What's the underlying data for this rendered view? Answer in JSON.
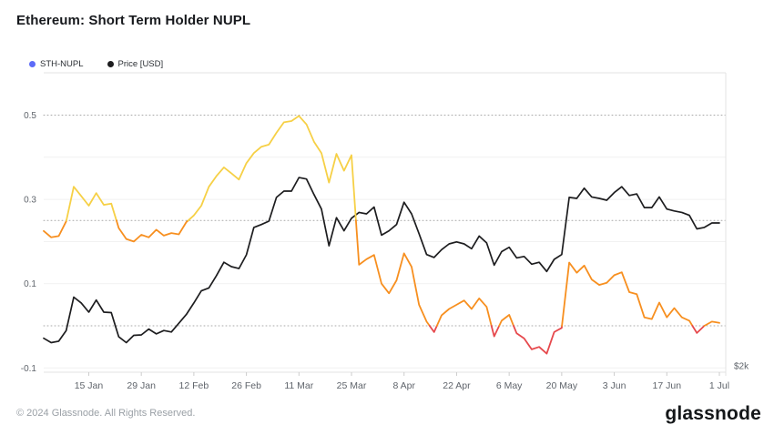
{
  "title": "Ethereum: Short Term Holder NUPL",
  "legend": [
    {
      "label": "STH-NUPL",
      "color": "#5d6bf8"
    },
    {
      "label": "Price [USD]",
      "color": "#1d1d1f"
    }
  ],
  "footer": {
    "copyright": "© 2024 Glassnode. All Rights Reserved.",
    "brand": "glassnode"
  },
  "colors": {
    "nupl_belief_yellow": "#f6d046",
    "nupl_optimism_orange": "#f78f1f",
    "nupl_capitulation_red": "#e6494d",
    "price_line": "#1d1d1f",
    "grid_dotted": "#a9a9a9",
    "grid_faint": "#f1f1f1",
    "axis_line": "#e3e3e3",
    "tick_mark": "#cccccc",
    "tick_text": "#5f646b"
  },
  "chart_data": {
    "type": "line",
    "title": "Ethereum: Short Term Holder NUPL",
    "x_start_date": "3 Jan 2024",
    "x_step_days": 2,
    "x_ticks": [
      {
        "label": "15 Jan",
        "i": 6
      },
      {
        "label": "29 Jan",
        "i": 13
      },
      {
        "label": "12 Feb",
        "i": 20
      },
      {
        "label": "26 Feb",
        "i": 27
      },
      {
        "label": "11 Mar",
        "i": 34
      },
      {
        "label": "25 Mar",
        "i": 41
      },
      {
        "label": "8 Apr",
        "i": 48
      },
      {
        "label": "22 Apr",
        "i": 55
      },
      {
        "label": "6 May",
        "i": 62
      },
      {
        "label": "20 May",
        "i": 69
      },
      {
        "label": "3 Jun",
        "i": 76
      },
      {
        "label": "17 Jun",
        "i": 83
      },
      {
        "label": "1 Jul",
        "i": 90
      }
    ],
    "nupl_axis": {
      "tick_labels": [
        "0.5",
        "0.3",
        "0.1",
        "-0.1"
      ],
      "tick_values": [
        0.5,
        0.3,
        0.1,
        -0.1
      ],
      "dotted_values": [
        0.5,
        0.25,
        0
      ],
      "faint_values": [
        0.4,
        0.3,
        0.2,
        0.1,
        -0.1
      ],
      "ylim": [
        -0.11,
        0.59
      ],
      "zone_thresholds": [
        0.25,
        0
      ],
      "zones": {
        "above_0.25": "yellow",
        "0_to_0.25": "orange",
        "below_0": "red"
      }
    },
    "price_axis": {
      "tick_label": "$2k",
      "tick_value": 2000,
      "ylim": [
        1930,
        5030
      ]
    },
    "series": [
      {
        "name": "STH-NUPL",
        "values": [
          0.225,
          0.21,
          0.213,
          0.248,
          0.33,
          0.308,
          0.285,
          0.315,
          0.287,
          0.29,
          0.232,
          0.206,
          0.2,
          0.216,
          0.21,
          0.228,
          0.214,
          0.22,
          0.217,
          0.246,
          0.262,
          0.285,
          0.33,
          0.355,
          0.376,
          0.362,
          0.347,
          0.386,
          0.41,
          0.425,
          0.43,
          0.458,
          0.483,
          0.486,
          0.498,
          0.478,
          0.437,
          0.41,
          0.34,
          0.408,
          0.368,
          0.405,
          0.145,
          0.158,
          0.168,
          0.1,
          0.077,
          0.108,
          0.172,
          0.14,
          0.05,
          0.01,
          -0.015,
          0.025,
          0.04,
          0.05,
          0.06,
          0.04,
          0.065,
          0.045,
          -0.025,
          0.012,
          0.026,
          -0.018,
          -0.03,
          -0.056,
          -0.05,
          -0.066,
          -0.015,
          -0.005,
          0.15,
          0.126,
          0.143,
          0.11,
          0.097,
          0.102,
          0.12,
          0.127,
          0.08,
          0.075,
          0.02,
          0.016,
          0.055,
          0.02,
          0.042,
          0.02,
          0.012,
          -0.017,
          0.0,
          0.01,
          0.007
        ]
      },
      {
        "name": "Price [USD]",
        "values": [
          2285,
          2240,
          2255,
          2365,
          2710,
          2650,
          2555,
          2680,
          2555,
          2550,
          2300,
          2240,
          2315,
          2320,
          2380,
          2330,
          2365,
          2350,
          2440,
          2530,
          2650,
          2775,
          2805,
          2930,
          3070,
          3025,
          3005,
          3147,
          3430,
          3460,
          3495,
          3740,
          3805,
          3805,
          3945,
          3930,
          3770,
          3620,
          3240,
          3530,
          3395,
          3525,
          3585,
          3570,
          3640,
          3350,
          3395,
          3460,
          3690,
          3570,
          3365,
          3150,
          3120,
          3200,
          3260,
          3280,
          3260,
          3210,
          3340,
          3270,
          3040,
          3180,
          3225,
          3115,
          3130,
          3050,
          3070,
          2975,
          3100,
          3150,
          3740,
          3730,
          3835,
          3745,
          3730,
          3711,
          3790,
          3850,
          3760,
          3776,
          3635,
          3635,
          3745,
          3620,
          3600,
          3585,
          3555,
          3415,
          3430,
          3476,
          3476
        ]
      }
    ],
    "legend_position": "top-left",
    "grid": "dotted thresholds at 0.5 / 0.25 / 0, faint solid every 0.1"
  }
}
